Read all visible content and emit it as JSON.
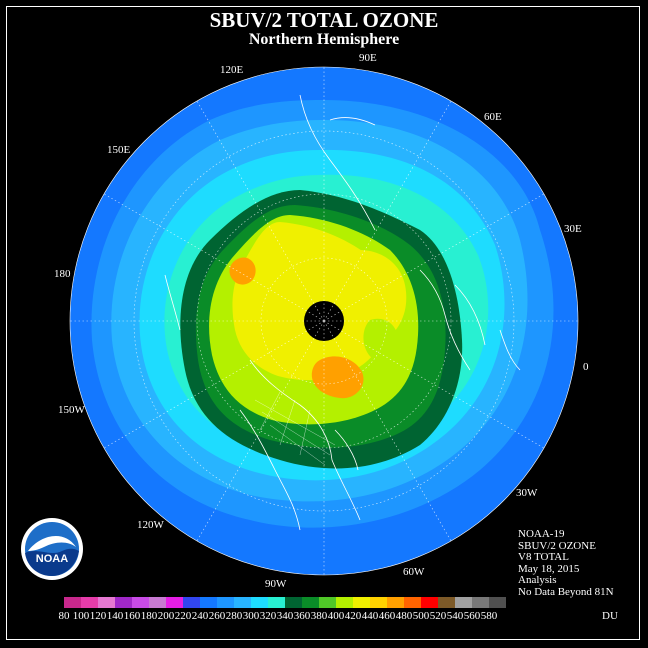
{
  "title": "SBUV/2 TOTAL OZONE",
  "subtitle": "Northern Hemisphere",
  "longitude_labels": [
    "90E",
    "60E",
    "30E",
    "0",
    "30W",
    "60W",
    "90W",
    "120W",
    "150W",
    "180",
    "150E",
    "120E"
  ],
  "info_lines": [
    "NOAA-19",
    "SBUV/2 OZONE",
    "V8 TOTAL",
    "May 18, 2015",
    "Analysis",
    "No Data Beyond 81N"
  ],
  "legend": {
    "unit": "DU",
    "ticks": [
      "80",
      "100",
      "120",
      "140",
      "160",
      "180",
      "200",
      "220",
      "240",
      "260",
      "280",
      "300",
      "320",
      "340",
      "360",
      "380",
      "400",
      "420",
      "440",
      "460",
      "480",
      "500",
      "520",
      "540",
      "560",
      "580"
    ],
    "colors": [
      "#c8288c",
      "#e63caa",
      "#e678d2",
      "#a028c8",
      "#c84be6",
      "#c87ad2",
      "#e61ee6",
      "#3246f0",
      "#1478ff",
      "#1e96ff",
      "#28b4ff",
      "#1edcff",
      "#28f0d2",
      "#006432",
      "#0a8c28",
      "#50c828",
      "#b4f000",
      "#f0f000",
      "#ffd200",
      "#ffa000",
      "#ff6400",
      "#ff0000",
      "#7d5a28",
      "#a0a0a0",
      "#787878",
      "#505050"
    ]
  },
  "map": {
    "colors": {
      "ring_outer": "#1478ff",
      "ring_1": "#1e96ff",
      "ring_2": "#28b4ff",
      "ring_3": "#1edcff",
      "ring_4": "#28f0d2",
      "dark_green": "#006432",
      "green": "#0a8c28",
      "light_green": "#b4f000",
      "yellow": "#f0f000",
      "orange": "#ffa000",
      "no_data": "#000000"
    }
  },
  "logo": {
    "text": "NOAA",
    "icon": "noaa-logo-icon"
  }
}
